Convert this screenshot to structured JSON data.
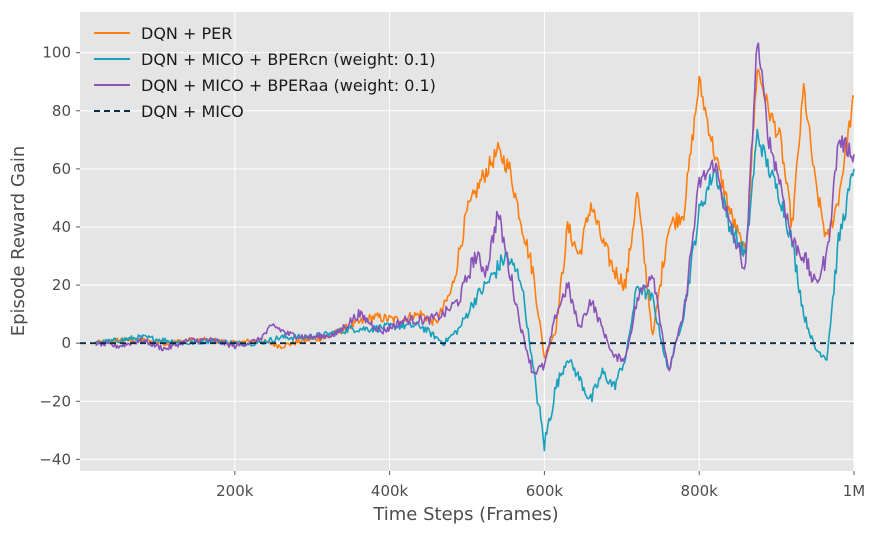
{
  "chart_data": {
    "type": "line",
    "title": "",
    "xlabel": "Time Steps (Frames)",
    "ylabel": "Episode Reward Gain",
    "xlim": [
      0,
      1000000
    ],
    "ylim": [
      -44,
      114
    ],
    "x_ticks": [
      200000,
      400000,
      600000,
      800000,
      1000000
    ],
    "x_tick_labels": [
      "200k",
      "400k",
      "600k",
      "800k",
      "1M"
    ],
    "y_ticks": [
      -40,
      -20,
      0,
      20,
      40,
      60,
      80,
      100
    ],
    "y_tick_labels": [
      "−40",
      "−20",
      "0",
      "20",
      "40",
      "60",
      "80",
      "100"
    ],
    "grid": true,
    "legend_position": "top-left",
    "series": [
      {
        "name": "DQN + PER",
        "color": "#ff7f0e",
        "style": "solid",
        "x": [
          20000,
          50000,
          80000,
          110000,
          140000,
          170000,
          200000,
          230000,
          260000,
          290000,
          320000,
          350000,
          380000,
          410000,
          440000,
          460000,
          480000,
          500000,
          520000,
          540000,
          555000,
          570000,
          585000,
          600000,
          615000,
          630000,
          645000,
          660000,
          675000,
          690000,
          705000,
          720000,
          740000,
          760000,
          780000,
          800000,
          820000,
          840000,
          860000,
          875000,
          890000,
          905000,
          920000,
          935000,
          950000,
          965000,
          980000,
          1000000
        ],
        "y": [
          0,
          1,
          1,
          0,
          1,
          1,
          0,
          1,
          -1,
          1,
          2,
          6,
          9,
          8,
          10,
          7,
          18,
          45,
          57,
          66,
          60,
          42,
          25,
          -5,
          5,
          40,
          30,
          48,
          35,
          25,
          20,
          52,
          2,
          40,
          45,
          90,
          65,
          45,
          30,
          95,
          80,
          70,
          40,
          88,
          55,
          35,
          50,
          85
        ]
      },
      {
        "name": "DQN + MICO + BPERcn (weight: 0.1)",
        "color": "#17a0bd",
        "style": "solid",
        "x": [
          20000,
          50000,
          80000,
          110000,
          140000,
          170000,
          200000,
          230000,
          260000,
          290000,
          320000,
          350000,
          380000,
          410000,
          440000,
          470000,
          490000,
          510000,
          530000,
          550000,
          570000,
          585000,
          600000,
          615000,
          630000,
          645000,
          660000,
          675000,
          690000,
          705000,
          720000,
          740000,
          760000,
          780000,
          800000,
          820000,
          840000,
          860000,
          875000,
          890000,
          905000,
          920000,
          935000,
          950000,
          965000,
          980000,
          1000000
        ],
        "y": [
          0,
          1,
          2,
          1,
          0,
          1,
          0,
          0,
          2,
          2,
          3,
          5,
          5,
          6,
          6,
          0,
          5,
          15,
          22,
          30,
          22,
          -8,
          -35,
          -15,
          -5,
          -12,
          -20,
          -10,
          -15,
          -5,
          20,
          15,
          -10,
          10,
          45,
          60,
          40,
          30,
          72,
          60,
          50,
          35,
          10,
          -2,
          -5,
          35,
          60
        ]
      },
      {
        "name": "DQN + MICO + BPERaa (weight: 0.1)",
        "color": "#8b53b8",
        "style": "solid",
        "x": [
          20000,
          50000,
          80000,
          110000,
          140000,
          170000,
          200000,
          230000,
          250000,
          270000,
          300000,
          330000,
          360000,
          390000,
          420000,
          450000,
          470000,
          490000,
          510000,
          525000,
          540000,
          555000,
          570000,
          585000,
          600000,
          615000,
          630000,
          645000,
          660000,
          675000,
          690000,
          705000,
          720000,
          740000,
          760000,
          780000,
          800000,
          820000,
          840000,
          860000,
          875000,
          890000,
          905000,
          920000,
          935000,
          950000,
          965000,
          980000,
          1000000
        ],
        "y": [
          0,
          -1,
          1,
          -2,
          1,
          1,
          -1,
          1,
          6,
          3,
          2,
          3,
          10,
          4,
          8,
          8,
          10,
          15,
          30,
          25,
          45,
          25,
          5,
          -10,
          -8,
          10,
          20,
          5,
          15,
          5,
          -5,
          -5,
          15,
          25,
          -10,
          10,
          55,
          62,
          40,
          25,
          105,
          70,
          55,
          35,
          30,
          20,
          30,
          70,
          65
        ]
      },
      {
        "name": "DQN + MICO",
        "color": "#0d2a45",
        "style": "dashed",
        "x": [
          0,
          1000000
        ],
        "y": [
          0,
          0
        ]
      }
    ]
  }
}
